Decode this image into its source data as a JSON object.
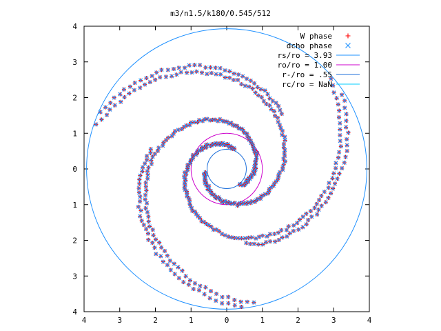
{
  "chart_data": {
    "type": "scatter",
    "title": "m3/n1.5/k180/0.545/512",
    "xlabel": "",
    "ylabel": "",
    "xlim": [
      -4,
      4
    ],
    "ylim": [
      -4,
      4
    ],
    "x_ticks": [
      -4,
      -3,
      -2,
      -1,
      0,
      1,
      2,
      3,
      4
    ],
    "y_ticks": [
      -4,
      -3,
      -2,
      -1,
      0,
      1,
      2,
      3,
      4
    ],
    "x_tick_labels": [
      "4",
      "3",
      "2",
      "1",
      "0",
      "1",
      "2",
      "3",
      "4"
    ],
    "y_tick_labels": [
      "4",
      "3",
      "2",
      "1",
      "0",
      "1",
      "2",
      "3",
      "4"
    ],
    "grid": false,
    "legend_position": "top-right",
    "series": [
      {
        "name": "W phase",
        "marker": "+",
        "color": "#ff0000"
      },
      {
        "name": "dcho phase",
        "marker": "x",
        "color": "#1e90ff"
      }
    ],
    "circles": [
      {
        "label": "rs/ro = 3.93",
        "radius": 3.93,
        "color": "#1e90ff"
      },
      {
        "label": "ro/ro = 1.00",
        "radius": 1.0,
        "color": "#cc00cc"
      },
      {
        "label": "r-/ro = .55",
        "radius": 0.55,
        "color": "#1e6fd9"
      },
      {
        "label": "rc/ro = NaN",
        "radius": null,
        "color": "#00ccff"
      }
    ],
    "arms": [
      {
        "theta0": 1.2,
        "r0": 0.6,
        "turns": 1.35,
        "growth": 0.32
      },
      {
        "theta0": 3.3,
        "r0": 0.6,
        "turns": 1.35,
        "growth": 0.32
      },
      {
        "theta0": 5.4,
        "r0": 0.6,
        "turns": 1.35,
        "growth": 0.32
      }
    ]
  }
}
